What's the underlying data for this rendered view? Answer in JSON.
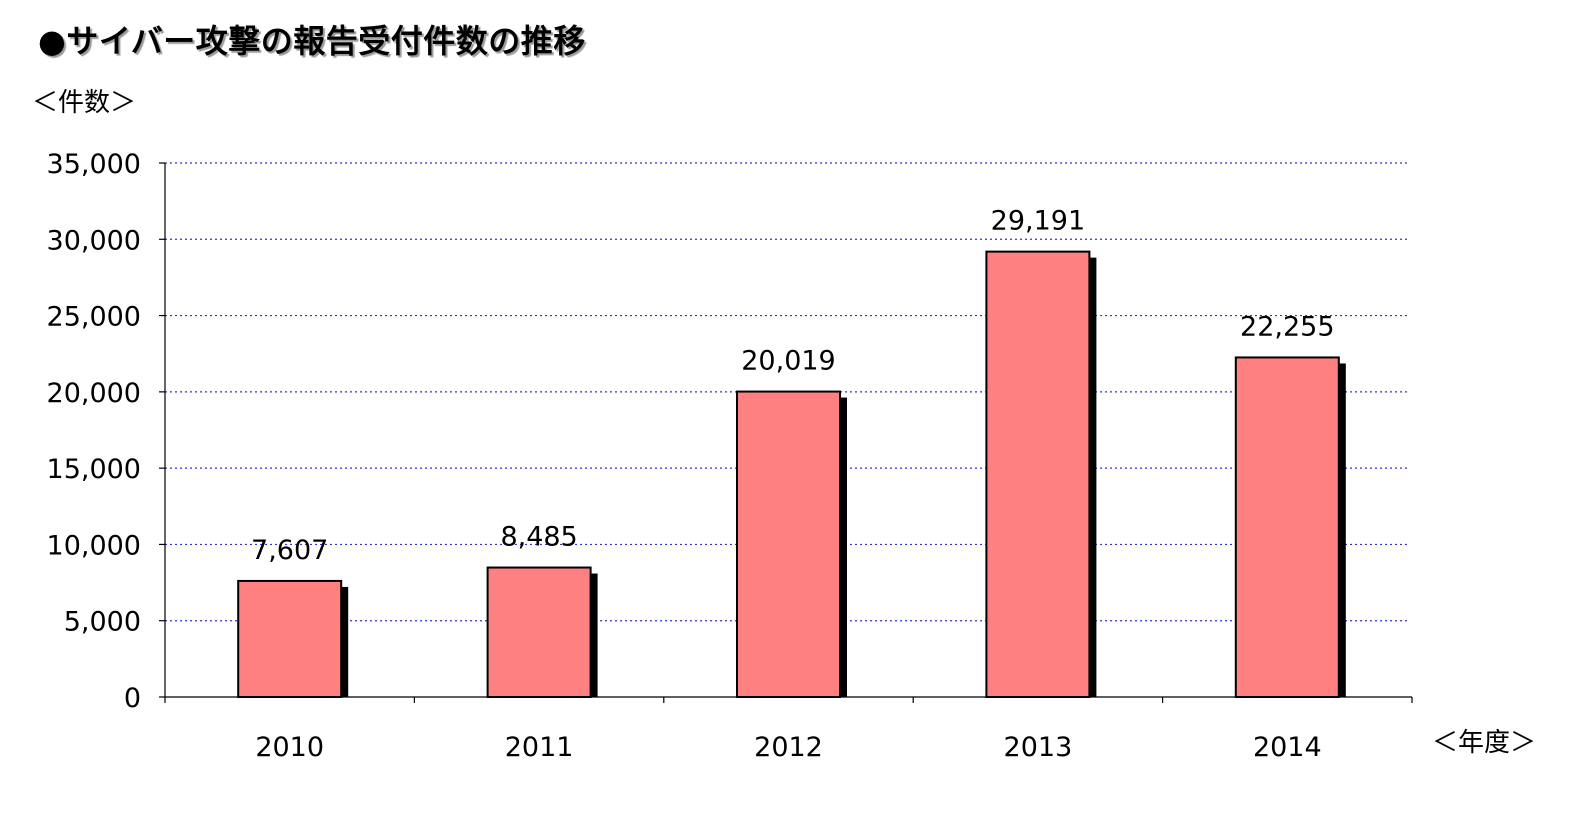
{
  "title": "●サイバー攻撃の報告受付件数の推移",
  "ylabel": "＜件数＞",
  "xlabel": "＜年度＞",
  "chart_data": {
    "type": "bar",
    "title": "●サイバー攻撃の報告受付件数の推移",
    "xlabel": "＜年度＞",
    "ylabel": "＜件数＞",
    "categories": [
      "2010",
      "2011",
      "2012",
      "2013",
      "2014"
    ],
    "values": [
      7607,
      8485,
      20019,
      29191,
      22255
    ],
    "value_labels": [
      "7,607",
      "8,485",
      "20,019",
      "29,191",
      "22,255"
    ],
    "ylim": [
      0,
      35000
    ],
    "yticks": [
      0,
      5000,
      10000,
      15000,
      20000,
      25000,
      30000,
      35000
    ],
    "ytick_labels": [
      "0",
      "5,000",
      "10,000",
      "15,000",
      "20,000",
      "25,000",
      "30,000",
      "35,000"
    ],
    "grid": true,
    "legend": "none",
    "bar_color": "#ff8080",
    "bar_edge_color": "#000000",
    "shadow_color": "#000000",
    "grid_color": "#3333cc"
  }
}
